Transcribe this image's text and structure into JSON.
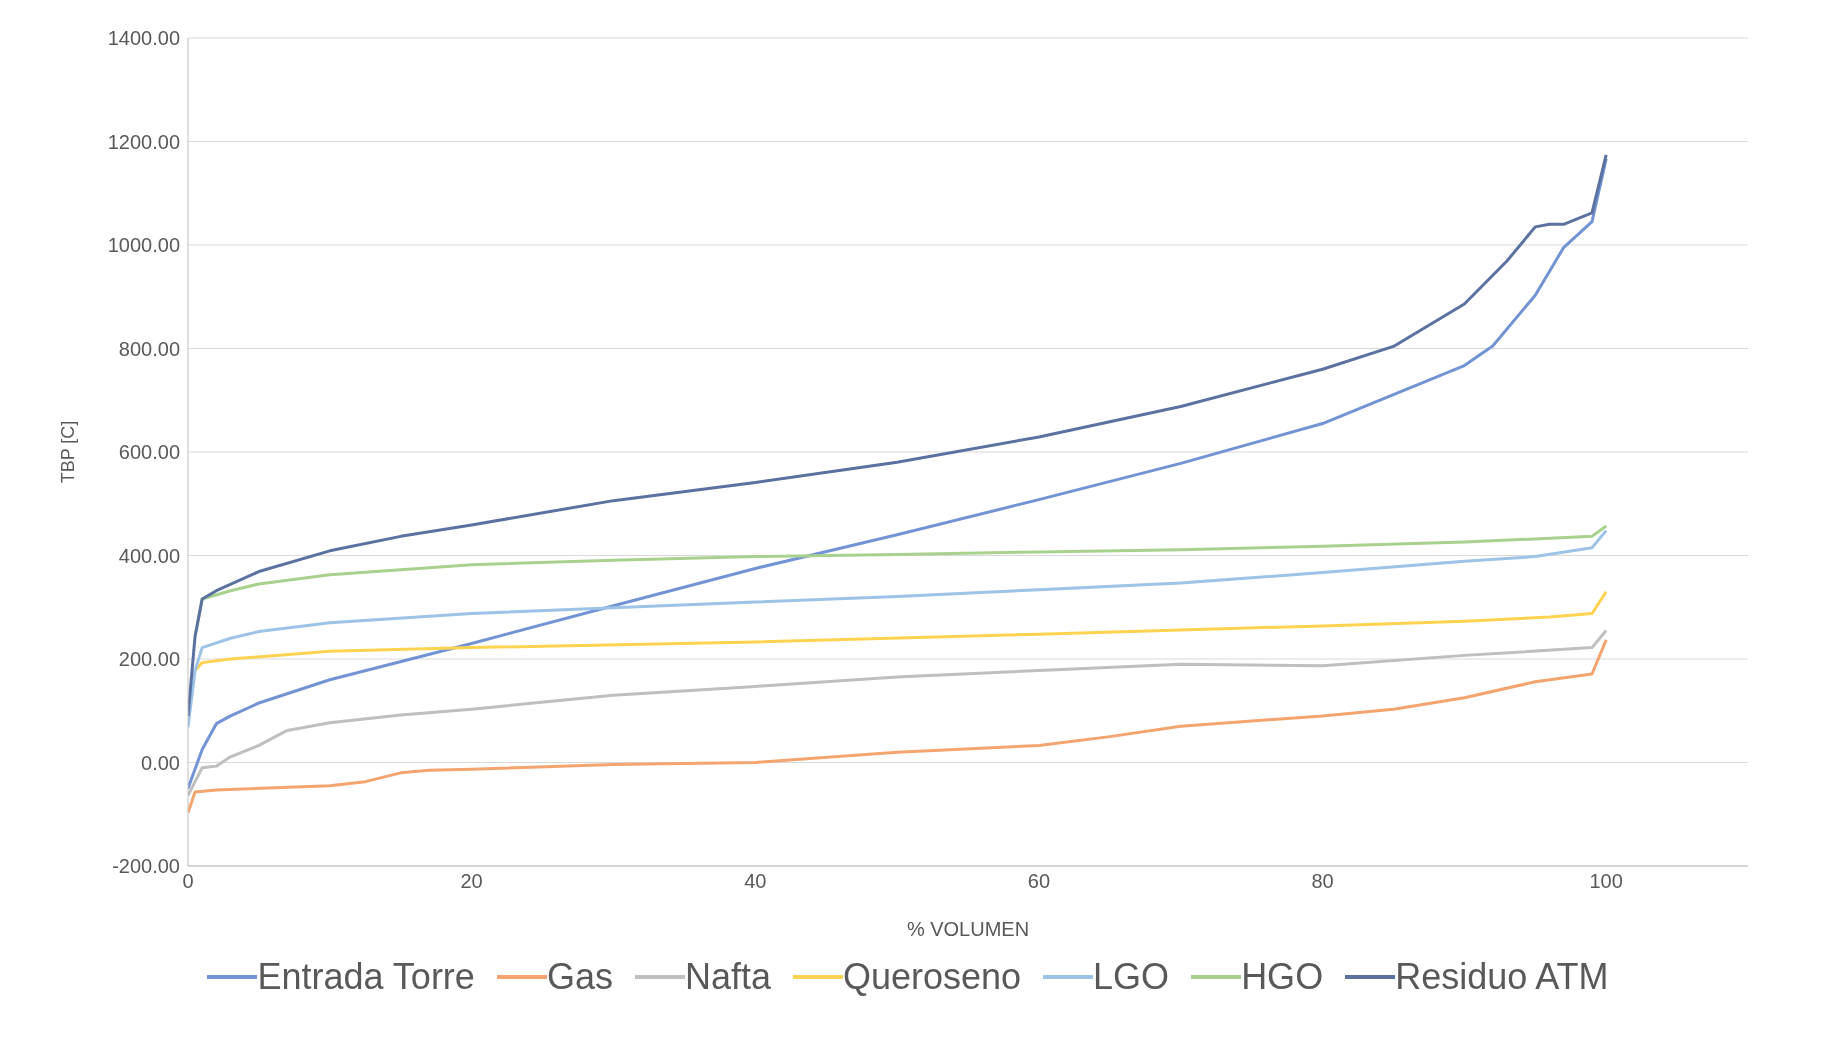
{
  "chart_data": {
    "type": "line",
    "xlabel": "% VOLUMEN",
    "ylabel": "TBP [C]",
    "xlim": [
      0,
      110
    ],
    "xticks": [
      0,
      20,
      40,
      60,
      80,
      100
    ],
    "ylim": [
      -200,
      1400
    ],
    "yticks": [
      {
        "value": -200,
        "label": "-200.00"
      },
      {
        "value": 0,
        "label": "0.00"
      },
      {
        "value": 200,
        "label": "200.00"
      },
      {
        "value": 400,
        "label": "400.00"
      },
      {
        "value": 600,
        "label": "600.00"
      },
      {
        "value": 800,
        "label": "800.00"
      },
      {
        "value": 1000,
        "label": "1000.00"
      },
      {
        "value": 1200,
        "label": "1200.00"
      },
      {
        "value": 1400,
        "label": "1400.00"
      }
    ],
    "grid": "y",
    "legend": "bottom",
    "series": [
      {
        "name": "Entrada Torre",
        "color": "#7294d4",
        "x": [
          0,
          1,
          2,
          3,
          5,
          10,
          20,
          30,
          40,
          50,
          60,
          70,
          80,
          90,
          92,
          95,
          97,
          99,
          100
        ],
        "values": [
          -50,
          25,
          75,
          90,
          115,
          160,
          230,
          303,
          375,
          440,
          508,
          578,
          655,
          767,
          805,
          903,
          995,
          1045,
          1167
        ]
      },
      {
        "name": "Gas",
        "color": "#f4a46e",
        "x": [
          0,
          0.5,
          2,
          10,
          12.5,
          15,
          17,
          20,
          30,
          40,
          50,
          60,
          65,
          70,
          80,
          85,
          90,
          95,
          99,
          100
        ],
        "values": [
          -97,
          -57,
          -53,
          -45,
          -37,
          -20,
          -15,
          -13,
          -4,
          0,
          20,
          33,
          50,
          70,
          90,
          103,
          125,
          156,
          171,
          237
        ]
      },
      {
        "name": "Nafta",
        "color": "#bfbfbf",
        "x": [
          0,
          1,
          2,
          3,
          5,
          7,
          10,
          15,
          20,
          30,
          40,
          50,
          60,
          70,
          80,
          90,
          99,
          100
        ],
        "values": [
          -64,
          -10,
          -7,
          11,
          33,
          62,
          77,
          92,
          103,
          130,
          147,
          165,
          178,
          190,
          187,
          207,
          222,
          255
        ]
      },
      {
        "name": "Queroseno",
        "color": "#ffd34f",
        "x": [
          0.5,
          1,
          3,
          10,
          20,
          40,
          60,
          80,
          90,
          96,
          99,
          100
        ],
        "values": [
          178,
          193,
          200,
          215,
          222,
          233,
          248,
          264,
          273,
          281,
          288,
          330
        ]
      },
      {
        "name": "LGO",
        "color": "#9dc3e6",
        "x": [
          0,
          0.5,
          1,
          3,
          5,
          10,
          20,
          30,
          40,
          50,
          60,
          70,
          80,
          90,
          95,
          99,
          100
        ],
        "values": [
          68,
          178,
          222,
          240,
          253,
          270,
          288,
          299,
          310,
          321,
          334,
          347,
          367,
          389,
          398,
          415,
          448
        ]
      },
      {
        "name": "HGO",
        "color": "#a9d18e",
        "x": [
          0.5,
          1,
          3,
          5,
          10,
          20,
          30,
          40,
          50,
          60,
          70,
          80,
          90,
          99,
          100
        ],
        "values": [
          244,
          316,
          332,
          345,
          363,
          382,
          391,
          398,
          402,
          407,
          411,
          418,
          426,
          437,
          457
        ]
      },
      {
        "name": "Residuo ATM",
        "color": "#5b71a0",
        "x": [
          0,
          0.5,
          1,
          2,
          5,
          10,
          15,
          20,
          30,
          40,
          50,
          60,
          70,
          80,
          85,
          90,
          93,
          95,
          96,
          97,
          99,
          100
        ],
        "values": [
          90,
          244,
          316,
          332,
          369,
          409,
          437,
          459,
          506,
          541,
          580,
          629,
          688,
          760,
          804,
          886,
          969,
          1035,
          1040,
          1040,
          1062,
          1174
        ]
      }
    ]
  }
}
